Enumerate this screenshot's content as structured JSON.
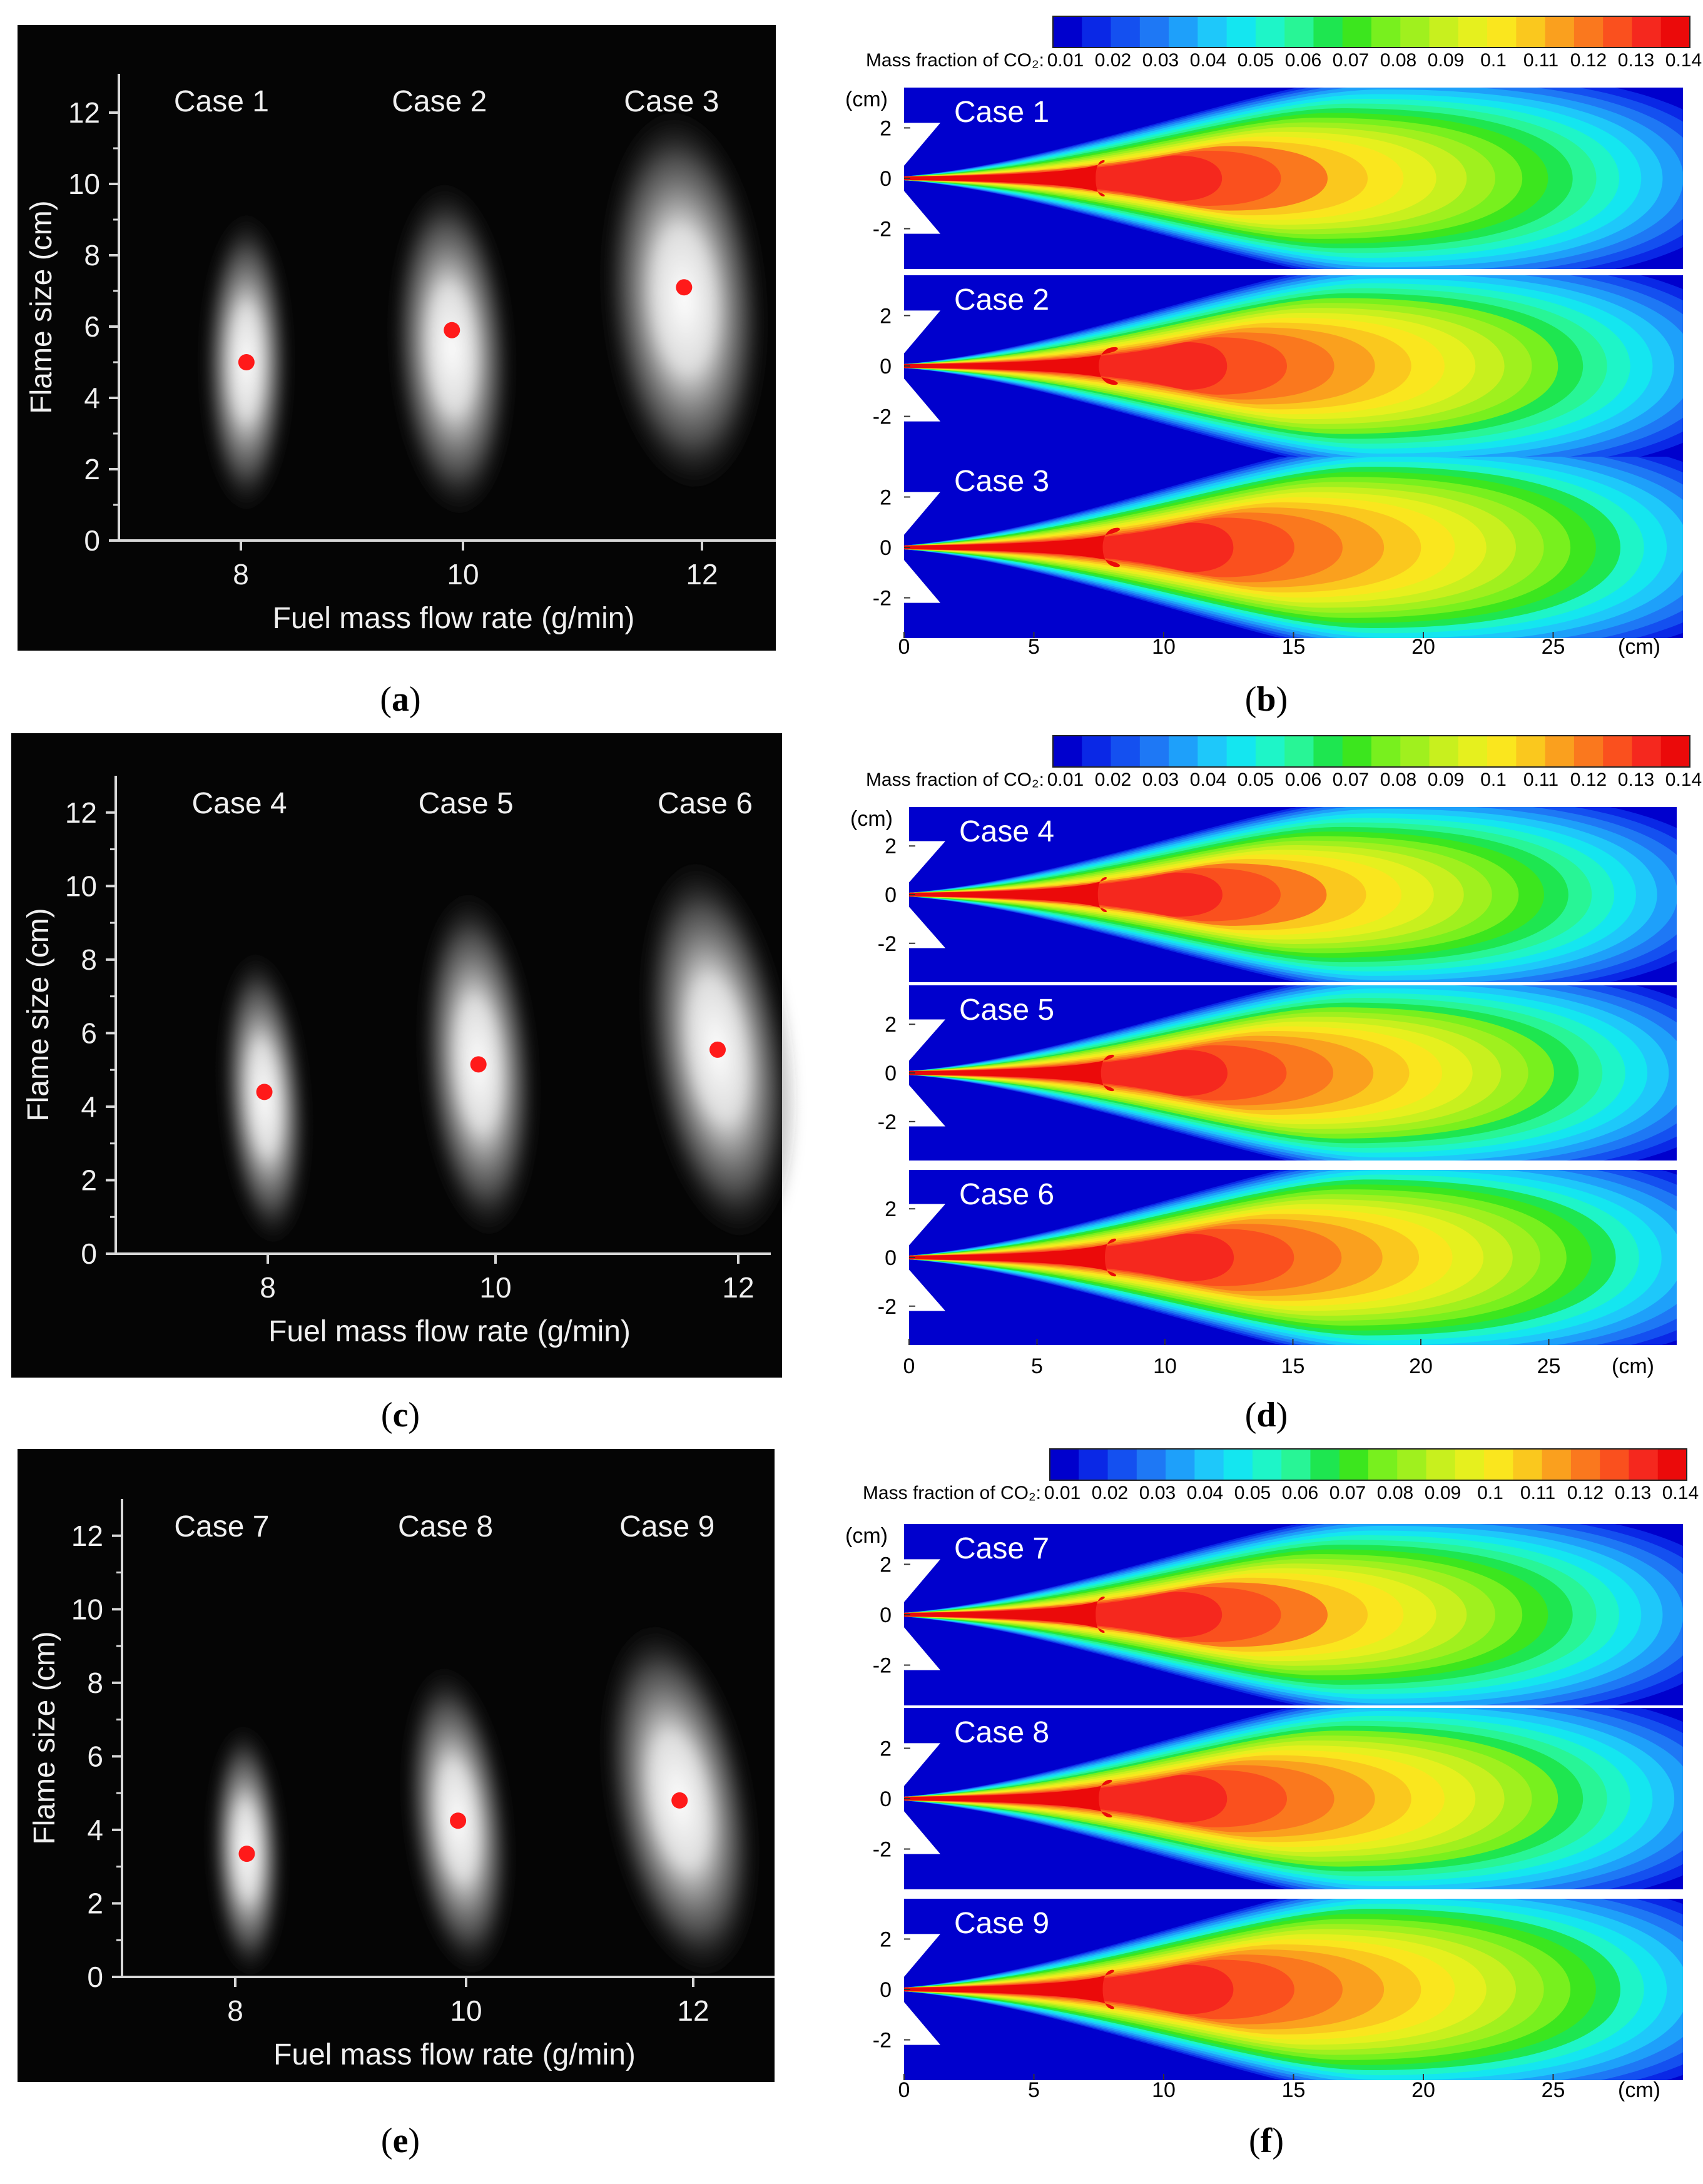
{
  "flame_panels": [
    {
      "label": "a",
      "cases": [
        "Case 1",
        "Case 2",
        "Case 3"
      ]
    },
    {
      "label": "c",
      "cases": [
        "Case 4",
        "Case 5",
        "Case 6"
      ]
    },
    {
      "label": "e",
      "cases": [
        "Case 7",
        "Case 8",
        "Case 9"
      ]
    }
  ],
  "contour_panels": [
    {
      "label": "b",
      "cases": [
        "Case 1",
        "Case 2",
        "Case 3"
      ]
    },
    {
      "label": "d",
      "cases": [
        "Case 4",
        "Case 5",
        "Case 6"
      ]
    },
    {
      "label": "f",
      "cases": [
        "Case 7",
        "Case 8",
        "Case 9"
      ]
    }
  ],
  "colorbar": {
    "label": "Mass fraction of CO₂:",
    "ticks": [
      "0.01",
      "0.02",
      "0.03",
      "0.04",
      "0.05",
      "0.06",
      "0.07",
      "0.08",
      "0.09",
      "0.1",
      "0.11",
      "0.12",
      "0.13",
      "0.14"
    ],
    "colors": [
      "#0000cd",
      "#0a28e6",
      "#1450f0",
      "#1e78f5",
      "#1ea0fa",
      "#1ec8fa",
      "#14e6f0",
      "#1ef5c8",
      "#28f596",
      "#1ee650",
      "#3ce61e",
      "#78f01e",
      "#a0f01e",
      "#c8f01e",
      "#e6f01e",
      "#fae61e",
      "#fac81e",
      "#faa01e",
      "#fa781e",
      "#fa501e",
      "#f5281e",
      "#eb0a0a"
    ]
  },
  "chart_data": [
    {
      "type": "scatter",
      "panel": "a",
      "xlabel": "Fuel mass flow rate (g/min)",
      "ylabel": "Flame size (cm)",
      "xticks": [
        "8",
        "10",
        "12"
      ],
      "yticks": [
        "0",
        "2",
        "4",
        "6",
        "8",
        "10",
        "12"
      ],
      "ylim": [
        0,
        13
      ],
      "categories": [
        "Case 1",
        "Case 2",
        "Case 3"
      ],
      "x": [
        8.05,
        9.9,
        11.85
      ],
      "values": [
        5.0,
        5.9,
        7.1
      ]
    },
    {
      "type": "scatter",
      "panel": "c",
      "xlabel": "Fuel mass flow rate (g/min)",
      "ylabel": "Flame size (cm)",
      "xticks": [
        "8",
        "10",
        "12"
      ],
      "yticks": [
        "0",
        "2",
        "4",
        "6",
        "8",
        "10",
        "12"
      ],
      "ylim": [
        0,
        13
      ],
      "categories": [
        "Case 4",
        "Case 5",
        "Case 6"
      ],
      "x": [
        7.97,
        9.85,
        11.83
      ],
      "values": [
        4.4,
        5.15,
        5.55
      ]
    },
    {
      "type": "scatter",
      "panel": "e",
      "xlabel": "Fuel mass flow rate (g/min)",
      "ylabel": "Flame size (cm)",
      "xticks": [
        "8",
        "10",
        "12"
      ],
      "yticks": [
        "0",
        "2",
        "4",
        "6",
        "8",
        "10",
        "12"
      ],
      "ylim": [
        0,
        13
      ],
      "categories": [
        "Case 7",
        "Case 8",
        "Case 9"
      ],
      "x": [
        8.1,
        9.93,
        11.88
      ],
      "values": [
        3.35,
        4.25,
        4.8
      ]
    },
    {
      "type": "heatmap",
      "panel": "b",
      "cases": [
        "Case 1",
        "Case 2",
        "Case 3"
      ],
      "xlabel": "(cm)",
      "ylabel": "(cm)",
      "xticks": [
        "0",
        "5",
        "10",
        "15",
        "20",
        "25"
      ],
      "yticks": [
        "2",
        "0",
        "-2"
      ],
      "xlim": [
        0,
        30
      ],
      "ylim": [
        -3.6,
        3.6
      ],
      "max_region_center_x": [
        11.5,
        13.5,
        14.5
      ],
      "max_region_length": [
        6,
        8,
        10
      ]
    },
    {
      "type": "heatmap",
      "panel": "d",
      "cases": [
        "Case 4",
        "Case 5",
        "Case 6"
      ],
      "xlabel": "(cm)",
      "ylabel": "(cm)",
      "xticks": [
        "0",
        "5",
        "10",
        "15",
        "20",
        "25"
      ],
      "yticks": [
        "2",
        "0",
        "-2"
      ],
      "xlim": [
        0,
        30
      ],
      "ylim": [
        -3.6,
        3.6
      ],
      "max_region_center_x": [
        11.0,
        12.5,
        13.5
      ],
      "max_region_length": [
        5,
        7,
        9
      ]
    },
    {
      "type": "heatmap",
      "panel": "f",
      "cases": [
        "Case 7",
        "Case 8",
        "Case 9"
      ],
      "xlabel": "(cm)",
      "ylabel": "(cm)",
      "xticks": [
        "0",
        "5",
        "10",
        "15",
        "20",
        "25"
      ],
      "yticks": [
        "2",
        "0",
        "-2"
      ],
      "xlim": [
        0,
        30
      ],
      "ylim": [
        -3.6,
        3.6
      ],
      "max_region_center_x": [
        11.0,
        12.5,
        13.5
      ],
      "max_region_length": [
        5,
        7,
        9
      ]
    }
  ]
}
